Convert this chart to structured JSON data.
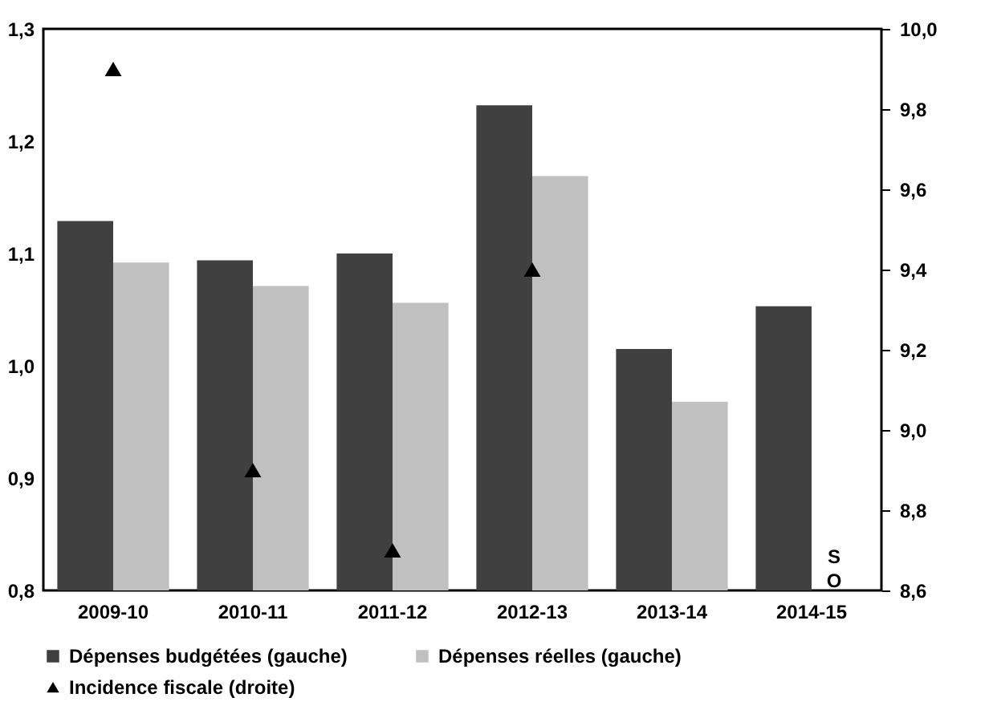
{
  "chart_data": {
    "type": "bar",
    "categories": [
      "2009-10",
      "2010-11",
      "2011-12",
      "2012-13",
      "2013-14",
      "2014-15"
    ],
    "series": [
      {
        "name": "Dépenses budgétées (gauche)",
        "color": "#404040",
        "values": [
          1.129,
          1.094,
          1.1,
          1.232,
          1.015,
          1.053
        ]
      },
      {
        "name": "Dépenses réelles (gauche)",
        "color": "#c0c0c0",
        "values": [
          1.092,
          1.071,
          1.056,
          1.169,
          0.968,
          null
        ]
      },
      {
        "name": "Incidence fiscale (droite)",
        "type": "scatter",
        "axis": "y2",
        "marker": "triangle",
        "color": "#000000",
        "values": [
          9.9,
          8.9,
          8.7,
          9.4,
          null,
          null
        ]
      }
    ],
    "ylim": [
      0.8,
      1.3
    ],
    "yticks": [
      {
        "value": 0.8,
        "label": "0,8"
      },
      {
        "value": 0.9,
        "label": "0,9"
      },
      {
        "value": 1.0,
        "label": "1,0"
      },
      {
        "value": 1.1,
        "label": "1,1"
      },
      {
        "value": 1.2,
        "label": "1,2"
      },
      {
        "value": 1.3,
        "label": "1,3"
      }
    ],
    "y2lim": [
      8.6,
      10.0
    ],
    "y2ticks": [
      {
        "value": 8.6,
        "label": "8,6"
      },
      {
        "value": 8.8,
        "label": "8,8"
      },
      {
        "value": 9.0,
        "label": "9,0"
      },
      {
        "value": 9.2,
        "label": "9,2"
      },
      {
        "value": 9.4,
        "label": "9,4"
      },
      {
        "value": 9.6,
        "label": "9,6"
      },
      {
        "value": 9.8,
        "label": "9,8"
      },
      {
        "value": 10.0,
        "label": "10,0"
      }
    ],
    "annotations": [
      {
        "text": "SO",
        "x": "2014-15",
        "y": 0.83
      }
    ],
    "grid": false,
    "legend": "bottom"
  }
}
